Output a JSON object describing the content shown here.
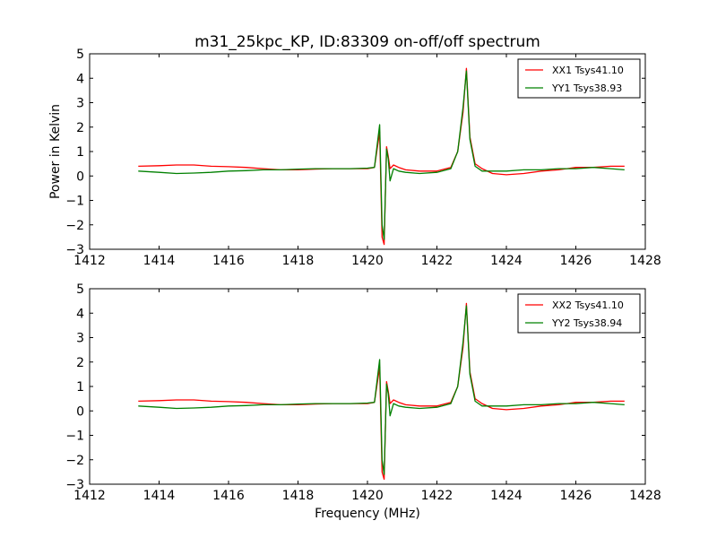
{
  "figure": {
    "title": "m31_25kpc_KP, ID:83309 on-off/off spectrum",
    "xlabel": "Frequency (MHz)",
    "ylabel": "Power in Kelvin"
  },
  "chart_data": [
    {
      "type": "line",
      "xlim": [
        1412,
        1428
      ],
      "ylim": [
        -3,
        5
      ],
      "xticks": [
        1412,
        1414,
        1416,
        1418,
        1420,
        1422,
        1424,
        1426,
        1428
      ],
      "yticks": [
        -3,
        -2,
        -1,
        0,
        1,
        2,
        3,
        4,
        5
      ],
      "xtick_labels": [
        "1412",
        "1414",
        "1416",
        "1418",
        "1420",
        "1422",
        "1424",
        "1426",
        "1428"
      ],
      "ytick_labels": [
        "−3",
        "−2",
        "−1",
        "0",
        "1",
        "2",
        "3",
        "4",
        "5"
      ],
      "legend_position": "top-right",
      "series": [
        {
          "name": "XX1 Tsys41.10",
          "color": "#ff0000",
          "x": [
            1413.4,
            1414.0,
            1414.5,
            1415.0,
            1415.5,
            1416.0,
            1416.5,
            1417.0,
            1417.5,
            1418.0,
            1418.5,
            1419.0,
            1419.5,
            1420.0,
            1420.2,
            1420.35,
            1420.42,
            1420.48,
            1420.55,
            1420.6,
            1420.65,
            1420.75,
            1420.9,
            1421.1,
            1421.5,
            1422.0,
            1422.4,
            1422.6,
            1422.75,
            1422.85,
            1422.95,
            1423.1,
            1423.3,
            1423.6,
            1424.0,
            1424.5,
            1425.0,
            1425.5,
            1426.0,
            1426.5,
            1427.0,
            1427.4
          ],
          "y": [
            0.4,
            0.42,
            0.45,
            0.45,
            0.4,
            0.38,
            0.35,
            0.3,
            0.25,
            0.25,
            0.28,
            0.3,
            0.3,
            0.3,
            0.35,
            1.8,
            -2.5,
            -2.8,
            1.2,
            0.8,
            0.3,
            0.45,
            0.35,
            0.25,
            0.2,
            0.2,
            0.35,
            1.0,
            2.6,
            4.4,
            1.6,
            0.5,
            0.3,
            0.1,
            0.05,
            0.1,
            0.2,
            0.25,
            0.35,
            0.35,
            0.4,
            0.4
          ]
        },
        {
          "name": "YY1 Tsys38.93",
          "color": "#008000",
          "x": [
            1413.4,
            1414.0,
            1414.5,
            1415.0,
            1415.5,
            1416.0,
            1416.5,
            1417.0,
            1417.5,
            1418.0,
            1418.5,
            1419.0,
            1419.5,
            1420.0,
            1420.2,
            1420.35,
            1420.42,
            1420.48,
            1420.55,
            1420.6,
            1420.65,
            1420.75,
            1420.9,
            1421.1,
            1421.5,
            1422.0,
            1422.4,
            1422.6,
            1422.75,
            1422.85,
            1422.95,
            1423.1,
            1423.3,
            1423.6,
            1424.0,
            1424.5,
            1425.0,
            1425.5,
            1426.0,
            1426.5,
            1427.0,
            1427.4
          ],
          "y": [
            0.2,
            0.15,
            0.1,
            0.12,
            0.15,
            0.2,
            0.22,
            0.25,
            0.25,
            0.28,
            0.3,
            0.3,
            0.3,
            0.32,
            0.35,
            2.1,
            -2.0,
            -2.6,
            1.1,
            0.7,
            -0.2,
            0.3,
            0.2,
            0.15,
            0.1,
            0.15,
            0.3,
            1.0,
            2.8,
            4.3,
            1.5,
            0.4,
            0.2,
            0.2,
            0.2,
            0.25,
            0.25,
            0.3,
            0.3,
            0.35,
            0.3,
            0.25
          ]
        }
      ]
    },
    {
      "type": "line",
      "xlim": [
        1412,
        1428
      ],
      "ylim": [
        -3,
        5
      ],
      "xticks": [
        1412,
        1414,
        1416,
        1418,
        1420,
        1422,
        1424,
        1426,
        1428
      ],
      "yticks": [
        -3,
        -2,
        -1,
        0,
        1,
        2,
        3,
        4,
        5
      ],
      "xtick_labels": [
        "1412",
        "1414",
        "1416",
        "1418",
        "1420",
        "1422",
        "1424",
        "1426",
        "1428"
      ],
      "ytick_labels": [
        "−3",
        "−2",
        "−1",
        "0",
        "1",
        "2",
        "3",
        "4",
        "5"
      ],
      "legend_position": "top-right",
      "series": [
        {
          "name": "XX2 Tsys41.10",
          "color": "#ff0000",
          "x": [
            1413.4,
            1414.0,
            1414.5,
            1415.0,
            1415.5,
            1416.0,
            1416.5,
            1417.0,
            1417.5,
            1418.0,
            1418.5,
            1419.0,
            1419.5,
            1420.0,
            1420.2,
            1420.35,
            1420.42,
            1420.48,
            1420.55,
            1420.6,
            1420.65,
            1420.75,
            1420.9,
            1421.1,
            1421.5,
            1422.0,
            1422.4,
            1422.6,
            1422.75,
            1422.85,
            1422.95,
            1423.1,
            1423.3,
            1423.6,
            1424.0,
            1424.5,
            1425.0,
            1425.5,
            1426.0,
            1426.5,
            1427.0,
            1427.4
          ],
          "y": [
            0.4,
            0.42,
            0.45,
            0.45,
            0.4,
            0.38,
            0.35,
            0.3,
            0.25,
            0.25,
            0.28,
            0.3,
            0.3,
            0.3,
            0.35,
            1.8,
            -2.5,
            -2.8,
            1.2,
            0.8,
            0.3,
            0.45,
            0.35,
            0.25,
            0.2,
            0.2,
            0.35,
            1.0,
            2.6,
            4.4,
            1.6,
            0.5,
            0.3,
            0.1,
            0.05,
            0.1,
            0.2,
            0.25,
            0.35,
            0.35,
            0.4,
            0.4
          ]
        },
        {
          "name": "YY2 Tsys38.94",
          "color": "#008000",
          "x": [
            1413.4,
            1414.0,
            1414.5,
            1415.0,
            1415.5,
            1416.0,
            1416.5,
            1417.0,
            1417.5,
            1418.0,
            1418.5,
            1419.0,
            1419.5,
            1420.0,
            1420.2,
            1420.35,
            1420.42,
            1420.48,
            1420.55,
            1420.6,
            1420.65,
            1420.75,
            1420.9,
            1421.1,
            1421.5,
            1422.0,
            1422.4,
            1422.6,
            1422.75,
            1422.85,
            1422.95,
            1423.1,
            1423.3,
            1423.6,
            1424.0,
            1424.5,
            1425.0,
            1425.5,
            1426.0,
            1426.5,
            1427.0,
            1427.4
          ],
          "y": [
            0.2,
            0.15,
            0.1,
            0.12,
            0.15,
            0.2,
            0.22,
            0.25,
            0.25,
            0.28,
            0.3,
            0.3,
            0.3,
            0.32,
            0.35,
            2.1,
            -2.0,
            -2.6,
            1.1,
            0.7,
            -0.2,
            0.3,
            0.2,
            0.15,
            0.1,
            0.15,
            0.3,
            1.0,
            2.8,
            4.3,
            1.5,
            0.4,
            0.2,
            0.2,
            0.2,
            0.25,
            0.25,
            0.3,
            0.3,
            0.35,
            0.3,
            0.25
          ]
        }
      ]
    }
  ]
}
